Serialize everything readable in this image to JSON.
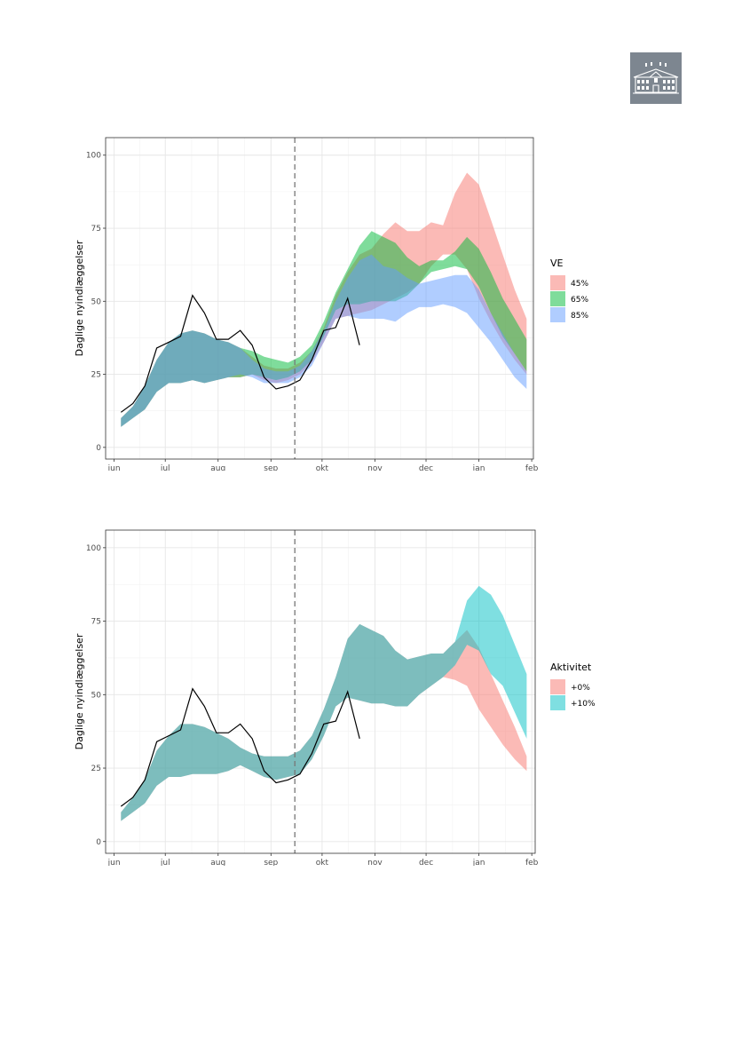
{
  "logo": {
    "icon": "manor-house-icon"
  },
  "chart_data": [
    {
      "type": "area",
      "ylabel": "Daglige nyindlæggelser",
      "xlabel": "",
      "x_ticks": [
        "jun",
        "jul",
        "aug",
        "sep",
        "okt",
        "nov",
        "dec",
        "jan",
        "feb"
      ],
      "x_tick_dates": [
        "2021-06-01",
        "2021-07-01",
        "2021-08-01",
        "2021-09-01",
        "2021-10-01",
        "2021-11-01",
        "2021-12-01",
        "2022-01-01",
        "2022-02-01"
      ],
      "xlim": [
        "2021-05-27",
        "2022-02-02"
      ],
      "ylim": [
        -4,
        106
      ],
      "y_ticks": [
        0,
        25,
        50,
        75,
        100
      ],
      "grid": true,
      "vline_date": "2021-09-15",
      "legend": {
        "title": "VE",
        "position": "right"
      },
      "series": [
        {
          "name": "45%",
          "color": "#F8766D",
          "x": [
            "2021-06-05",
            "2021-06-12",
            "2021-06-19",
            "2021-06-26",
            "2021-07-03",
            "2021-07-10",
            "2021-07-17",
            "2021-07-24",
            "2021-07-31",
            "2021-08-07",
            "2021-08-14",
            "2021-08-21",
            "2021-08-28",
            "2021-09-04",
            "2021-09-11",
            "2021-09-18",
            "2021-09-25",
            "2021-10-02",
            "2021-10-09",
            "2021-10-16",
            "2021-10-23",
            "2021-10-30",
            "2021-11-06",
            "2021-11-13",
            "2021-11-20",
            "2021-11-27",
            "2021-12-04",
            "2021-12-11",
            "2021-12-18",
            "2021-12-25",
            "2022-01-01",
            "2022-01-08",
            "2022-01-15",
            "2022-01-22",
            "2022-01-29"
          ],
          "upper": [
            10,
            14,
            21,
            30,
            36,
            39,
            40,
            39,
            37,
            36,
            34,
            31,
            28,
            27,
            27,
            29,
            33,
            41,
            52,
            60,
            66,
            68,
            73,
            77,
            74,
            74,
            77,
            76,
            87,
            94,
            90,
            78,
            66,
            54,
            44
          ],
          "lower": [
            7,
            10,
            13,
            19,
            22,
            22,
            23,
            22,
            23,
            24,
            24,
            25,
            23,
            22,
            23,
            25,
            29,
            36,
            44,
            45,
            46,
            47,
            49,
            51,
            53,
            56,
            62,
            66,
            66,
            61,
            51,
            43,
            36,
            30,
            25
          ]
        },
        {
          "name": "65%",
          "color": "#00BA38",
          "x": [
            "2021-06-05",
            "2021-06-12",
            "2021-06-19",
            "2021-06-26",
            "2021-07-03",
            "2021-07-10",
            "2021-07-17",
            "2021-07-24",
            "2021-07-31",
            "2021-08-07",
            "2021-08-14",
            "2021-08-21",
            "2021-08-28",
            "2021-09-04",
            "2021-09-11",
            "2021-09-18",
            "2021-09-25",
            "2021-10-02",
            "2021-10-09",
            "2021-10-16",
            "2021-10-23",
            "2021-10-30",
            "2021-11-06",
            "2021-11-13",
            "2021-11-20",
            "2021-11-27",
            "2021-12-04",
            "2021-12-11",
            "2021-12-18",
            "2021-12-25",
            "2022-01-01",
            "2022-01-08",
            "2022-01-15",
            "2022-01-22",
            "2022-01-29"
          ],
          "upper": [
            10,
            14,
            21,
            30,
            36,
            39,
            40,
            39,
            37,
            36,
            34,
            33,
            31,
            30,
            29,
            31,
            35,
            43,
            53,
            61,
            69,
            74,
            72,
            70,
            65,
            62,
            64,
            64,
            67,
            72,
            68,
            60,
            51,
            44,
            37
          ],
          "lower": [
            7,
            10,
            13,
            19,
            22,
            22,
            23,
            22,
            23,
            24,
            24,
            25,
            24,
            23,
            24,
            26,
            30,
            38,
            47,
            49,
            49,
            50,
            50,
            50,
            52,
            56,
            60,
            61,
            62,
            61,
            55,
            46,
            38,
            32,
            26
          ]
        },
        {
          "name": "85%",
          "color": "#619CFF",
          "x": [
            "2021-06-05",
            "2021-06-12",
            "2021-06-19",
            "2021-06-26",
            "2021-07-03",
            "2021-07-10",
            "2021-07-17",
            "2021-07-24",
            "2021-07-31",
            "2021-08-07",
            "2021-08-14",
            "2021-08-21",
            "2021-08-28",
            "2021-09-04",
            "2021-09-11",
            "2021-09-18",
            "2021-09-25",
            "2021-10-02",
            "2021-10-09",
            "2021-10-16",
            "2021-10-23",
            "2021-10-30",
            "2021-11-06",
            "2021-11-13",
            "2021-11-20",
            "2021-11-27",
            "2021-12-04",
            "2021-12-11",
            "2021-12-18",
            "2021-12-25",
            "2022-01-01",
            "2022-01-08",
            "2022-01-15",
            "2022-01-22",
            "2022-01-29"
          ],
          "upper": [
            10,
            14,
            21,
            30,
            36,
            39,
            40,
            39,
            37,
            36,
            34,
            30,
            27,
            26,
            26,
            28,
            33,
            40,
            50,
            58,
            64,
            66,
            62,
            61,
            58,
            56,
            57,
            58,
            59,
            59,
            54,
            46,
            39,
            32,
            26
          ],
          "lower": [
            7,
            10,
            13,
            19,
            22,
            22,
            23,
            22,
            23,
            24,
            25,
            24,
            22,
            22,
            22,
            24,
            28,
            36,
            44,
            45,
            44,
            44,
            44,
            43,
            46,
            48,
            48,
            49,
            48,
            46,
            41,
            36,
            30,
            24,
            20
          ]
        }
      ],
      "observed": {
        "x": [
          "2021-06-05",
          "2021-06-12",
          "2021-06-19",
          "2021-06-26",
          "2021-07-03",
          "2021-07-10",
          "2021-07-17",
          "2021-07-24",
          "2021-07-31",
          "2021-08-07",
          "2021-08-14",
          "2021-08-21",
          "2021-08-28",
          "2021-09-04",
          "2021-09-11",
          "2021-09-18",
          "2021-09-25",
          "2021-10-02",
          "2021-10-09",
          "2021-10-16",
          "2021-10-23"
        ],
        "y": [
          12,
          15,
          21,
          34,
          36,
          38,
          52,
          46,
          37,
          37,
          40,
          35,
          24,
          20,
          21,
          23,
          30,
          40,
          41,
          51,
          35
        ],
        "color": "#000000"
      }
    },
    {
      "type": "area",
      "ylabel": "Daglige nyindlæggelser",
      "xlabel": "",
      "x_ticks": [
        "jun",
        "jul",
        "aug",
        "sep",
        "okt",
        "nov",
        "dec",
        "jan",
        "feb"
      ],
      "x_tick_dates": [
        "2021-06-01",
        "2021-07-01",
        "2021-08-01",
        "2021-09-01",
        "2021-10-01",
        "2021-11-01",
        "2021-12-01",
        "2022-01-01",
        "2022-02-01"
      ],
      "xlim": [
        "2021-05-27",
        "2022-02-03"
      ],
      "ylim": [
        -4,
        106
      ],
      "y_ticks": [
        0,
        25,
        50,
        75,
        100
      ],
      "grid": true,
      "vline_date": "2021-09-15",
      "legend": {
        "title": "Aktivitet",
        "position": "right"
      },
      "series": [
        {
          "name": "+0%",
          "color": "#F8766D",
          "x": [
            "2021-06-05",
            "2021-06-12",
            "2021-06-19",
            "2021-06-26",
            "2021-07-03",
            "2021-07-10",
            "2021-07-17",
            "2021-07-24",
            "2021-07-31",
            "2021-08-07",
            "2021-08-14",
            "2021-08-21",
            "2021-08-28",
            "2021-09-04",
            "2021-09-11",
            "2021-09-18",
            "2021-09-25",
            "2021-10-02",
            "2021-10-09",
            "2021-10-16",
            "2021-10-23",
            "2021-10-30",
            "2021-11-06",
            "2021-11-13",
            "2021-11-20",
            "2021-11-27",
            "2021-12-04",
            "2021-12-11",
            "2021-12-18",
            "2021-12-25",
            "2022-01-01",
            "2022-01-08",
            "2022-01-15",
            "2022-01-22",
            "2022-01-29"
          ],
          "upper": [
            10,
            15,
            21,
            31,
            36,
            40,
            40,
            39,
            37,
            35,
            32,
            30,
            29,
            29,
            29,
            31,
            36,
            45,
            56,
            69,
            74,
            72,
            70,
            65,
            62,
            63,
            64,
            64,
            68,
            72,
            66,
            57,
            48,
            39,
            29
          ],
          "lower": [
            7,
            10,
            13,
            19,
            22,
            22,
            23,
            23,
            23,
            24,
            26,
            24,
            22,
            21,
            22,
            23,
            28,
            36,
            46,
            49,
            48,
            47,
            47,
            46,
            46,
            50,
            53,
            56,
            55,
            53,
            45,
            39,
            33,
            28,
            24
          ]
        },
        {
          "name": "+10%",
          "color": "#00BFC4",
          "x": [
            "2021-06-05",
            "2021-06-12",
            "2021-06-19",
            "2021-06-26",
            "2021-07-03",
            "2021-07-10",
            "2021-07-17",
            "2021-07-24",
            "2021-07-31",
            "2021-08-07",
            "2021-08-14",
            "2021-08-21",
            "2021-08-28",
            "2021-09-04",
            "2021-09-11",
            "2021-09-18",
            "2021-09-25",
            "2021-10-02",
            "2021-10-09",
            "2021-10-16",
            "2021-10-23",
            "2021-10-30",
            "2021-11-06",
            "2021-11-13",
            "2021-11-20",
            "2021-11-27",
            "2021-12-04",
            "2021-12-11",
            "2021-12-18",
            "2021-12-25",
            "2022-01-01",
            "2022-01-08",
            "2022-01-15",
            "2022-01-22",
            "2022-01-29"
          ],
          "upper": [
            10,
            15,
            21,
            31,
            36,
            40,
            40,
            39,
            37,
            35,
            32,
            30,
            29,
            29,
            29,
            31,
            36,
            45,
            56,
            69,
            74,
            72,
            70,
            65,
            62,
            63,
            64,
            64,
            68,
            82,
            87,
            84,
            77,
            67,
            57
          ],
          "lower": [
            7,
            10,
            13,
            19,
            22,
            22,
            23,
            23,
            23,
            24,
            26,
            24,
            22,
            21,
            22,
            23,
            28,
            36,
            46,
            49,
            48,
            47,
            47,
            46,
            46,
            50,
            53,
            56,
            60,
            67,
            65,
            57,
            53,
            44,
            35
          ]
        }
      ],
      "observed": {
        "x": [
          "2021-06-05",
          "2021-06-12",
          "2021-06-19",
          "2021-06-26",
          "2021-07-03",
          "2021-07-10",
          "2021-07-17",
          "2021-07-24",
          "2021-07-31",
          "2021-08-07",
          "2021-08-14",
          "2021-08-21",
          "2021-08-28",
          "2021-09-04",
          "2021-09-11",
          "2021-09-18",
          "2021-09-25",
          "2021-10-02",
          "2021-10-09",
          "2021-10-16",
          "2021-10-23"
        ],
        "y": [
          12,
          15,
          21,
          34,
          36,
          38,
          52,
          46,
          37,
          37,
          40,
          35,
          24,
          20,
          21,
          23,
          30,
          40,
          41,
          51,
          35
        ],
        "color": "#000000"
      }
    }
  ]
}
